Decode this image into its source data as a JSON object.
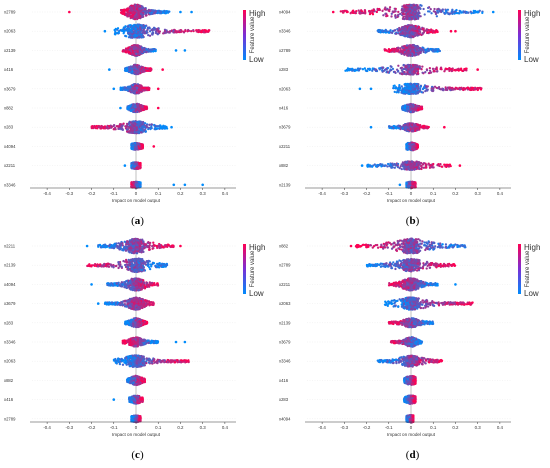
{
  "colors": {
    "high": "#ff0052",
    "low": "#008bfb",
    "mid": "#7a2fd6",
    "axis": "#333333"
  },
  "chart_data": [
    {
      "type": "scatter",
      "caption": "a",
      "features": [
        "x2789",
        "x2063",
        "x2139",
        "x416",
        "x3679",
        "x882",
        "x283",
        "x4094",
        "x2211",
        "x3346"
      ],
      "xlabel": "Impact on model output",
      "xlim": [
        -0.45,
        0.45
      ],
      "xticks": [
        -0.4,
        -0.3,
        -0.2,
        -0.1,
        0.0,
        0.1,
        0.2,
        0.3,
        0.4
      ],
      "colorbar": {
        "label": "Feature value",
        "high": "High",
        "low": "Low"
      },
      "rows": [
        {
          "min": -0.07,
          "max": 0.15,
          "spread": 1.0,
          "high_side": "neg",
          "outliers": [
            -0.3,
            0.2,
            0.25
          ]
        },
        {
          "min": -0.1,
          "max": 0.33,
          "spread": 0.9,
          "high_side": "pos",
          "outliers": [
            -0.14
          ]
        },
        {
          "min": -0.06,
          "max": 0.09,
          "spread": 0.7,
          "high_side": "neg",
          "outliers": [
            0.18,
            0.22
          ]
        },
        {
          "min": -0.05,
          "max": 0.07,
          "spread": 0.6,
          "high_side": "pos",
          "outliers": [
            -0.12,
            0.12
          ]
        },
        {
          "min": -0.07,
          "max": 0.06,
          "spread": 0.6,
          "high_side": "pos",
          "outliers": [
            -0.1,
            0.1
          ]
        },
        {
          "min": -0.04,
          "max": 0.05,
          "spread": 0.5,
          "high_side": "pos",
          "outliers": [
            -0.07,
            0.1
          ]
        },
        {
          "min": -0.2,
          "max": 0.14,
          "spread": 0.8,
          "high_side": "neg",
          "outliers": [
            0.16
          ]
        },
        {
          "min": -0.02,
          "max": 0.03,
          "spread": 0.35,
          "high_side": "pos",
          "outliers": [
            0.08
          ]
        },
        {
          "min": -0.02,
          "max": 0.02,
          "spread": 0.35,
          "high_side": "pos",
          "outliers": [
            -0.05
          ]
        },
        {
          "min": -0.02,
          "max": 0.02,
          "spread": 0.3,
          "high_side": "neg",
          "outliers": [
            0.17,
            0.22,
            0.3
          ]
        }
      ]
    },
    {
      "type": "scatter",
      "caption": "b",
      "features": [
        "x4094",
        "x3346",
        "x2789",
        "x283",
        "x2063",
        "x416",
        "x3679",
        "x2211",
        "x882",
        "x2139"
      ],
      "xlabel": "Impact on model output",
      "xlim": [
        -0.45,
        0.45
      ],
      "xticks": [
        -0.4,
        -0.3,
        -0.2,
        -0.1,
        0.0,
        0.1,
        0.2,
        0.3,
        0.4
      ],
      "colorbar": {
        "label": "Feature value",
        "high": "High",
        "low": "Low"
      },
      "rows": [
        {
          "min": -0.32,
          "max": 0.33,
          "spread": 1.0,
          "high_side": "neg",
          "outliers": [
            -0.35,
            0.37
          ]
        },
        {
          "min": -0.15,
          "max": 0.12,
          "spread": 0.8,
          "high_side": "pos",
          "outliers": [
            0.18,
            0.2
          ]
        },
        {
          "min": -0.12,
          "max": 0.13,
          "spread": 0.7,
          "high_side": "neg",
          "outliers": []
        },
        {
          "min": -0.3,
          "max": 0.25,
          "spread": 0.6,
          "high_side": "pos",
          "outliers": [
            0.3
          ]
        },
        {
          "min": -0.08,
          "max": 0.32,
          "spread": 0.65,
          "high_side": "pos",
          "outliers": [
            -0.18,
            -0.23
          ]
        },
        {
          "min": -0.04,
          "max": 0.05,
          "spread": 0.5,
          "high_side": "pos",
          "outliers": []
        },
        {
          "min": -0.1,
          "max": 0.08,
          "spread": 0.5,
          "high_side": "pos",
          "outliers": [
            -0.18,
            0.15
          ]
        },
        {
          "min": -0.02,
          "max": 0.03,
          "spread": 0.45,
          "high_side": "pos",
          "outliers": []
        },
        {
          "min": -0.2,
          "max": 0.18,
          "spread": 0.5,
          "high_side": "pos",
          "outliers": [
            -0.22,
            0.22
          ]
        },
        {
          "min": -0.02,
          "max": 0.02,
          "spread": 0.3,
          "high_side": "pos",
          "outliers": [
            -0.05
          ]
        }
      ]
    },
    {
      "type": "scatter",
      "caption": "c",
      "features": [
        "x2211",
        "x2139",
        "x4094",
        "x3679",
        "x283",
        "x3346",
        "x2063",
        "x882",
        "x416",
        "x2789"
      ],
      "xlabel": "Impact on model output",
      "xlim": [
        -0.45,
        0.45
      ],
      "xticks": [
        -0.4,
        -0.3,
        -0.2,
        -0.1,
        0.0,
        0.1,
        0.2,
        0.3,
        0.4
      ],
      "colorbar": {
        "label": "Feature value",
        "high": "High",
        "low": "Low"
      },
      "rows": [
        {
          "min": -0.17,
          "max": 0.17,
          "spread": 1.0,
          "high_side": "pos",
          "outliers": [
            -0.22,
            0.2
          ]
        },
        {
          "min": -0.22,
          "max": 0.14,
          "spread": 0.9,
          "high_side": "neg",
          "outliers": []
        },
        {
          "min": -0.13,
          "max": 0.1,
          "spread": 0.8,
          "high_side": "pos",
          "outliers": [
            -0.2
          ]
        },
        {
          "min": -0.14,
          "max": 0.08,
          "spread": 0.8,
          "high_side": "pos",
          "outliers": [
            -0.17
          ]
        },
        {
          "min": -0.05,
          "max": 0.05,
          "spread": 0.55,
          "high_side": "pos",
          "outliers": []
        },
        {
          "min": -0.06,
          "max": 0.1,
          "spread": 0.55,
          "high_side": "neg",
          "outliers": [
            0.18,
            0.22
          ]
        },
        {
          "min": -0.1,
          "max": 0.24,
          "spread": 0.75,
          "high_side": "pos",
          "outliers": []
        },
        {
          "min": -0.04,
          "max": 0.04,
          "spread": 0.55,
          "high_side": "pos",
          "outliers": []
        },
        {
          "min": -0.03,
          "max": 0.03,
          "spread": 0.45,
          "high_side": "pos",
          "outliers": [
            -0.1
          ]
        },
        {
          "min": -0.02,
          "max": 0.02,
          "spread": 0.35,
          "high_side": "pos",
          "outliers": []
        }
      ]
    },
    {
      "type": "scatter",
      "caption": "d",
      "features": [
        "x882",
        "x2789",
        "x2211",
        "x2063",
        "x2139",
        "x3679",
        "x3346",
        "x416",
        "x283",
        "x4094"
      ],
      "xlabel": "Impact on model output",
      "xlim": [
        -0.45,
        0.45
      ],
      "xticks": [
        -0.4,
        -0.3,
        -0.2,
        -0.1,
        0.0,
        0.1,
        0.2,
        0.3,
        0.4
      ],
      "colorbar": {
        "label": "Feature value",
        "high": "High",
        "low": "Low"
      },
      "rows": [
        {
          "min": -0.25,
          "max": 0.25,
          "spread": 1.0,
          "high_side": "neg",
          "outliers": [
            -0.27
          ]
        },
        {
          "min": -0.2,
          "max": 0.2,
          "spread": 0.8,
          "high_side": "pos",
          "outliers": []
        },
        {
          "min": -0.1,
          "max": 0.12,
          "spread": 0.8,
          "high_side": "neg",
          "outliers": [
            0.2
          ]
        },
        {
          "min": -0.12,
          "max": 0.28,
          "spread": 0.8,
          "high_side": "pos",
          "outliers": []
        },
        {
          "min": -0.1,
          "max": 0.1,
          "spread": 0.55,
          "high_side": "neg",
          "outliers": []
        },
        {
          "min": -0.09,
          "max": 0.05,
          "spread": 0.6,
          "high_side": "neg",
          "outliers": []
        },
        {
          "min": -0.15,
          "max": 0.14,
          "spread": 0.7,
          "high_side": "pos",
          "outliers": []
        },
        {
          "min": -0.03,
          "max": 0.02,
          "spread": 0.55,
          "high_side": "pos",
          "outliers": []
        },
        {
          "min": -0.03,
          "max": 0.02,
          "spread": 0.5,
          "high_side": "pos",
          "outliers": []
        },
        {
          "min": -0.02,
          "max": 0.01,
          "spread": 0.4,
          "high_side": "pos",
          "outliers": []
        }
      ]
    }
  ]
}
